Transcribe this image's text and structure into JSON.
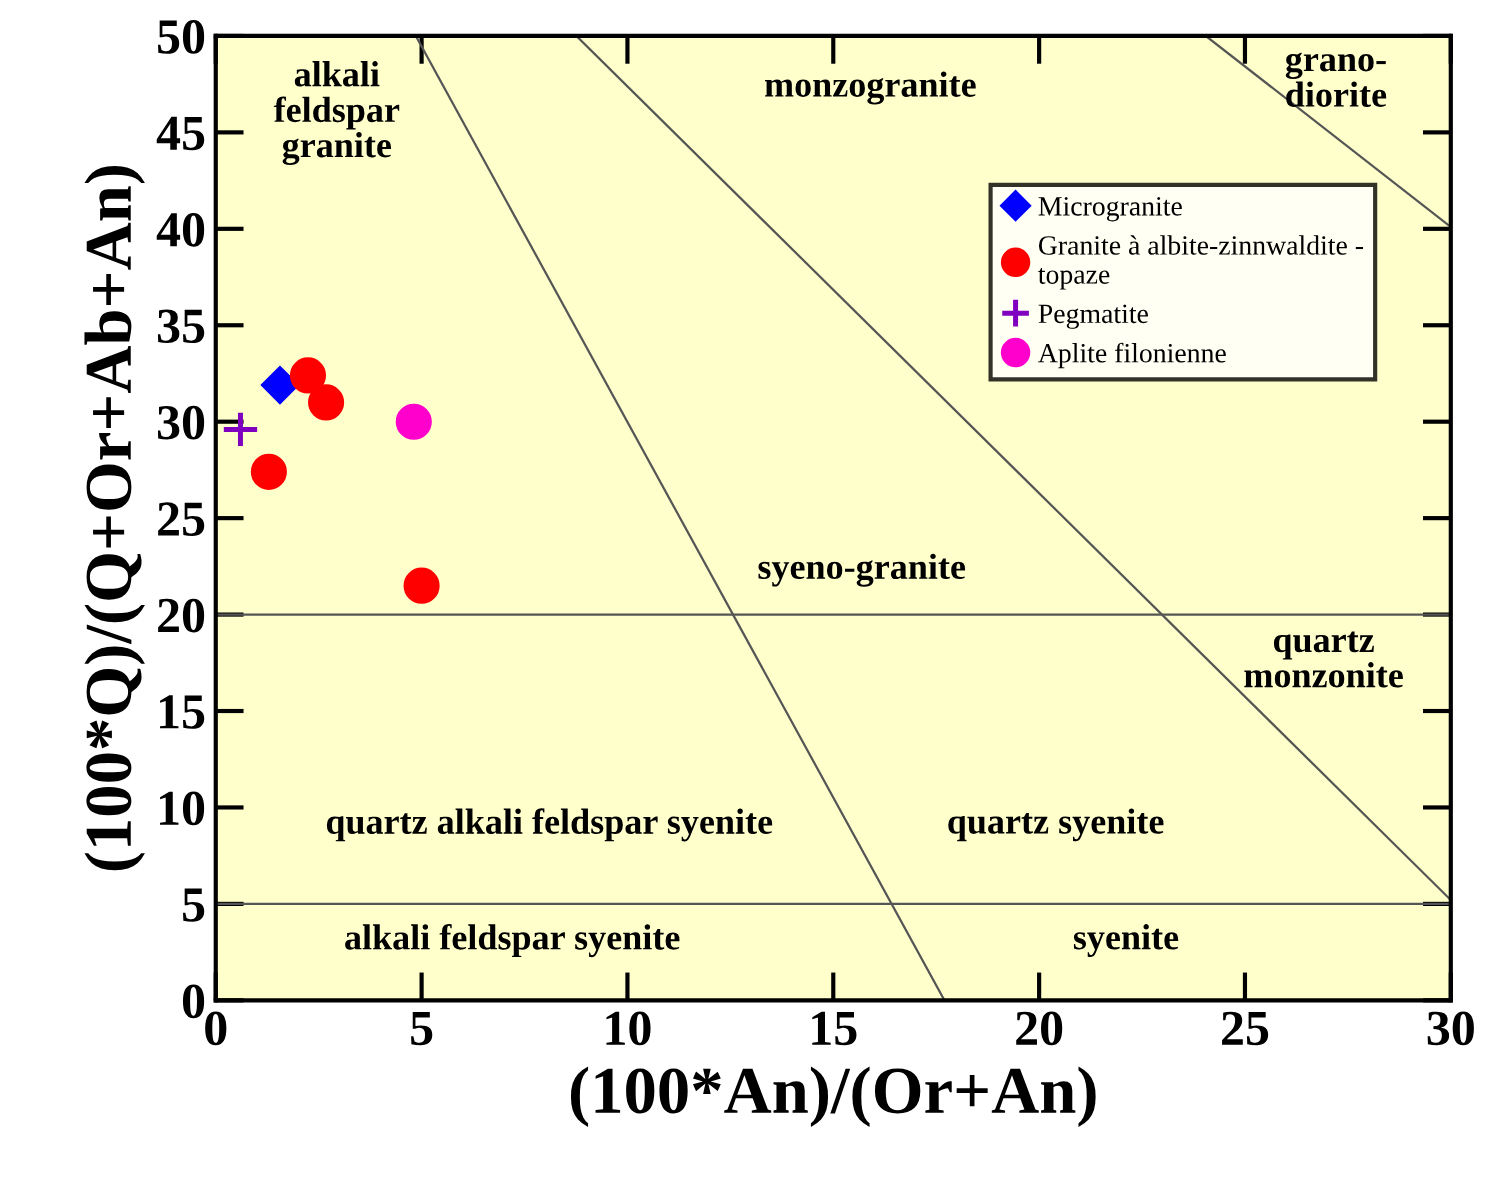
{
  "chart_data": {
    "type": "scatter",
    "xlabel": "(100*An)/(Or+An)",
    "ylabel": "(100*Q)/(Q+Or+Ab+An)",
    "xlim": [
      0,
      30
    ],
    "ylim": [
      0,
      50
    ],
    "xticks": [
      0,
      5,
      10,
      15,
      20,
      25,
      30
    ],
    "yticks": [
      0,
      5,
      10,
      15,
      20,
      25,
      30,
      35,
      40,
      45,
      50
    ],
    "grid": false,
    "legend": "top right",
    "series": [
      {
        "name": "Microgranite",
        "color": "#0000ff",
        "marker": "diamond",
        "x": [
          1.56
        ],
        "values": [
          31.9
        ]
      },
      {
        "name": "Granite à albite-zinnwaldite -\ntopaze",
        "color": "#ff0000",
        "marker": "circle",
        "x": [
          2.24,
          2.68,
          1.29,
          5.0
        ],
        "values": [
          32.4,
          31.0,
          27.4,
          21.5
        ]
      },
      {
        "name": "Pegmatite",
        "color": "#8000c0",
        "marker": "cross",
        "x": [
          0.6
        ],
        "values": [
          29.6
        ]
      },
      {
        "name": "Aplite filonienne",
        "color": "#ff00cc",
        "marker": "circle",
        "x": [
          4.81
        ],
        "values": [
          30.0
        ]
      },
      {
        "type": "line",
        "color": "#555555",
        "marker": "none",
        "x": [
          4.86,
          17.7
        ],
        "values": [
          50,
          0
        ]
      },
      {
        "type": "line",
        "color": "#555555",
        "marker": "none",
        "x": [
          8.76,
          30
        ],
        "values": [
          50,
          5.2
        ]
      },
      {
        "type": "line",
        "color": "#555555",
        "marker": "none",
        "x": [
          24.05,
          30
        ],
        "values": [
          50,
          40.1
        ]
      }
    ],
    "ref_lines": [
      {
        "axis": "y",
        "value": 20,
        "color": "#555555"
      },
      {
        "axis": "y",
        "value": 5,
        "color": "#555555"
      }
    ],
    "annotations": [
      "alkali\nfeldspar\ngranite",
      "monzogranite",
      "grano-\ndiorite",
      "syeno-granite",
      "quartz\nmonzonite",
      "quartz alkali feldspar syenite",
      "quartz syenite",
      "alkali feldspar syenite",
      "syenite"
    ]
  }
}
